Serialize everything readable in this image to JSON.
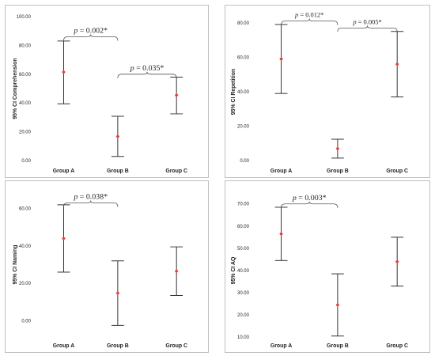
{
  "chart_data": [
    {
      "type": "errorbar",
      "ylabel": "95% CI Comprehension",
      "categories": [
        "Group A",
        "Group B",
        "Group C"
      ],
      "ylim": [
        0,
        100
      ],
      "yticks": [
        "0.00",
        "20.00",
        "40.00",
        "60.00",
        "80.00",
        "100.00"
      ],
      "ytick_values": [
        0,
        20,
        40,
        60,
        80,
        100
      ],
      "series": [
        {
          "mean": 61.5,
          "lower": 39.5,
          "upper": 83.0
        },
        {
          "mean": 16.8,
          "lower": 3.0,
          "upper": 30.8
        },
        {
          "mean": 45.5,
          "lower": 32.5,
          "upper": 58.0
        }
      ],
      "annotations": [
        {
          "text": "p = 0.002*",
          "from": 0,
          "to": 1,
          "y": 86
        },
        {
          "text": "p = 0.035*",
          "from": 1,
          "to": 2,
          "y": 60
        }
      ]
    },
    {
      "type": "errorbar",
      "ylabel": "95% CI Repetition",
      "categories": [
        "Group A",
        "Group B",
        "Group C"
      ],
      "ylim": [
        0,
        80
      ],
      "yticks": [
        "0.00",
        "20.00",
        "40.00",
        "60.00",
        "80.00"
      ],
      "ytick_values": [
        0,
        20,
        40,
        60,
        80
      ],
      "series": [
        {
          "mean": 59.0,
          "lower": 39.0,
          "upper": 79.0
        },
        {
          "mean": 7.0,
          "lower": 1.5,
          "upper": 12.5
        },
        {
          "mean": 56.0,
          "lower": 37.0,
          "upper": 75.0
        }
      ],
      "annotations": [
        {
          "text": "p = 0.012*",
          "from": 0,
          "to": 1,
          "y": 81
        },
        {
          "text": "p = 0.005*",
          "from": 1,
          "to": 2,
          "y": 77
        }
      ]
    },
    {
      "type": "errorbar",
      "ylabel": "95% CI Naming",
      "categories": [
        "Group A",
        "Group B",
        "Group C"
      ],
      "ylim": [
        -5,
        65
      ],
      "yticks": [
        "0.00",
        "20.00",
        "40.00",
        "60.00"
      ],
      "ytick_values": [
        0,
        20,
        40,
        60
      ],
      "series": [
        {
          "mean": 44.0,
          "lower": 26.0,
          "upper": 62.0
        },
        {
          "mean": 14.8,
          "lower": -2.5,
          "upper": 32.0
        },
        {
          "mean": 26.5,
          "lower": 13.5,
          "upper": 39.5
        }
      ],
      "annotations": [
        {
          "text": "p = 0.038*",
          "from": 0,
          "to": 1,
          "y": 63
        }
      ]
    },
    {
      "type": "errorbar",
      "ylabel": "95% CI AQ",
      "categories": [
        "Group A",
        "Group B",
        "Group C"
      ],
      "ylim": [
        10,
        70
      ],
      "yticks": [
        "10.00",
        "20.00",
        "30.00",
        "40.00",
        "50.00",
        "60.00",
        "70.00"
      ],
      "ytick_values": [
        10,
        20,
        30,
        40,
        50,
        60,
        70
      ],
      "series": [
        {
          "mean": 56.5,
          "lower": 44.5,
          "upper": 68.5
        },
        {
          "mean": 24.5,
          "lower": 10.5,
          "upper": 38.5
        },
        {
          "mean": 44.0,
          "lower": 33.0,
          "upper": 55.0
        }
      ],
      "annotations": [
        {
          "text": "p = 0.003*",
          "from": 0,
          "to": 1,
          "y": 70
        }
      ]
    }
  ],
  "colors": {
    "mean_marker": "#e8413a",
    "bar": "#333333",
    "frame": "#bfbfbf",
    "text": "#222222"
  }
}
